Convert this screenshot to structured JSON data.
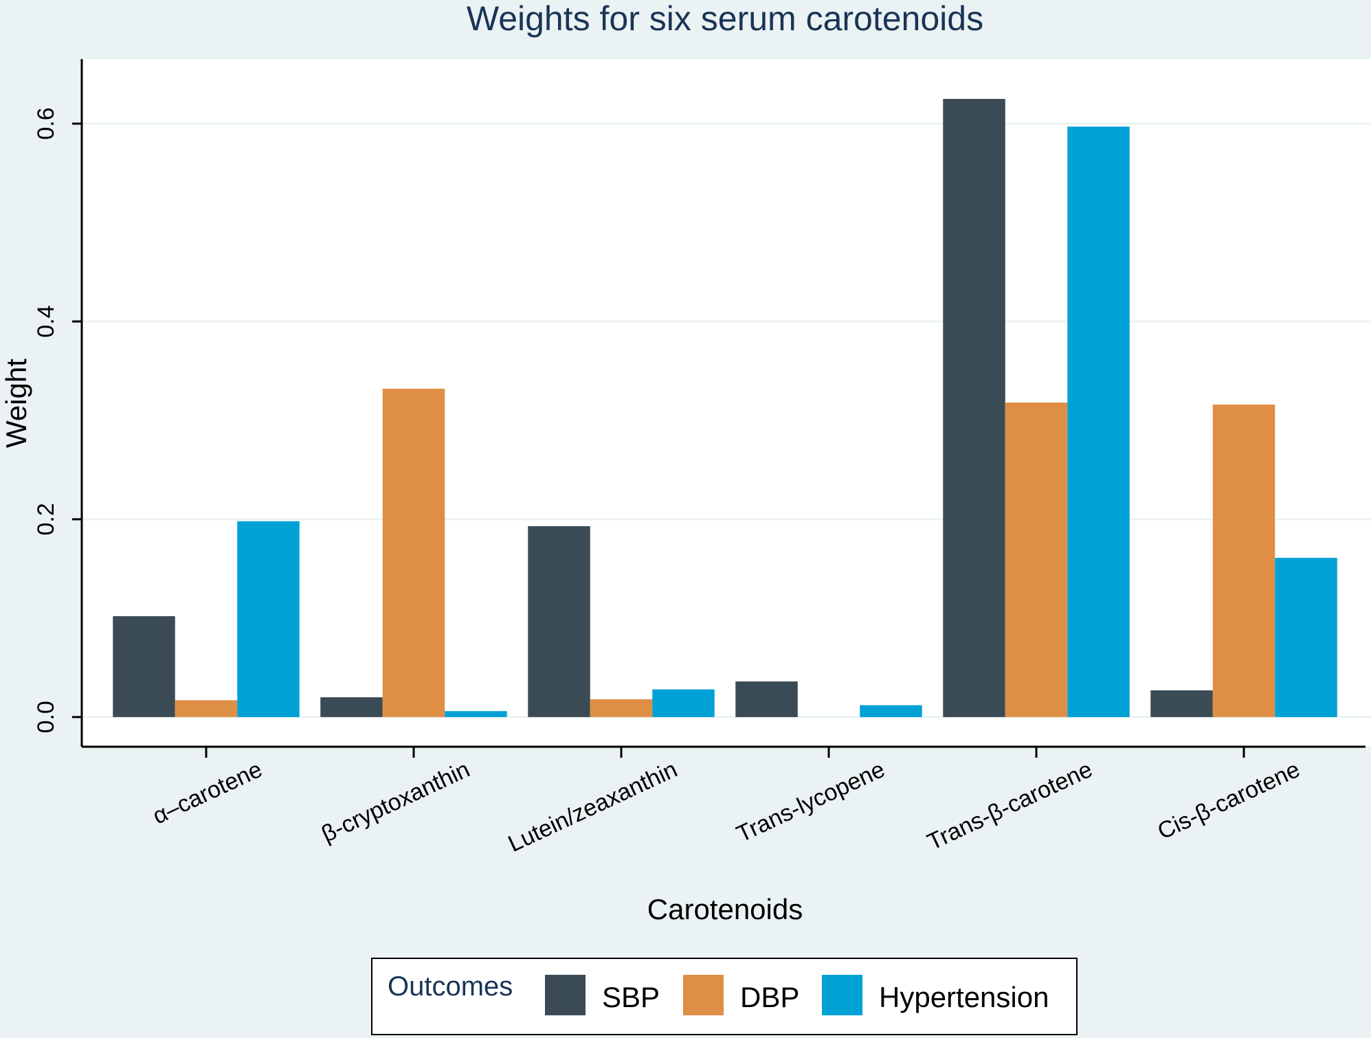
{
  "chart_data": {
    "type": "bar",
    "title": "Weights for six serum carotenoids",
    "xlabel": "Carotenoids",
    "ylabel": "Weight",
    "categories": [
      "α–carotene",
      "β-cryptoxanthin",
      "Lutein/zeaxanthin",
      "Trans-lycopene",
      "Trans-β-carotene",
      "Cis-β-carotene"
    ],
    "series": [
      {
        "name": "SBP",
        "color": "#3a4b55",
        "values": [
          0.102,
          0.02,
          0.193,
          0.036,
          0.625,
          0.027
        ]
      },
      {
        "name": "DBP",
        "color": "#de8f45",
        "values": [
          0.017,
          0.332,
          0.018,
          0.0,
          0.318,
          0.316
        ]
      },
      {
        "name": "Hypertension",
        "color": "#00a1d5",
        "values": [
          0.198,
          0.006,
          0.028,
          0.012,
          0.597,
          0.161
        ]
      }
    ],
    "ylim": [
      -0.03,
      0.6653
    ],
    "yticks": [
      0.0,
      0.2,
      0.4,
      0.6
    ],
    "ytick_labels": [
      "0.0",
      "0.2",
      "0.4",
      "0.6"
    ],
    "grid": true,
    "legend": {
      "title": "Outcomes",
      "position": "bottom",
      "labels": [
        "SBP",
        "DBP",
        "Hypertension"
      ]
    },
    "colors": {
      "outer_background": "#eaf2f3",
      "plot_background": "#ffffff",
      "grid": "#eaf2f3"
    }
  }
}
